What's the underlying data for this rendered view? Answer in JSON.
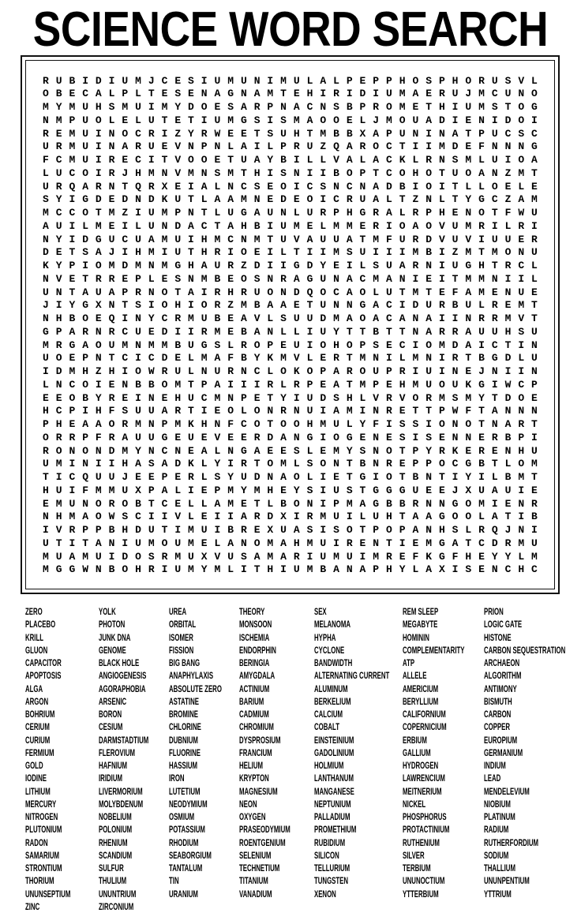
{
  "title": "SCIENCE WORD SEARCH",
  "grid": {
    "rows": [
      "RUBIDIUMJCESIUMUNIMULALPEPPHOSPHORUSVL",
      "OBECALPLTESENAGNAMTEHIRIDIUMAERUJMCUNO",
      "MYMUHSMUIMYDOESARPNACNSBPROMETHIUMSTOG",
      "NMPUOLELUTETIUMGSISMAOOELJMOUADIENIDOI",
      "REMUINOCRIZYRWEETSUHTMBBXAPUNINATPUCSC",
      "URMUINARUEVNPNLAILPRUZQAROCTIIMDEFNNNG",
      "FCMUIRECITVOOETUAYBILLVALACKLRNSMLUIOA",
      "LUCOIRJHMNVMNSMTHISNIIBOPTCOHOTUOANZMT",
      "URQARNTQRXEIALNCSEOICSNCNADBIOITLLOELE",
      "SYIGDEDNDKUTLAAMNEDEOICRUALTZNLTYGCZAM",
      "MCCOTMZIUMPNTLUGAUNLURPHGRALRPHENOTFWU",
      "AUILMEILUNDACTAHBIUMELMMERIOAOVUMRILRI",
      "NYIDGUCUAMUIHMCNMTUVAUUATMFURDVUVIUUER",
      "DETSAJIHMIUTHRIOEILTIIMSUIIIMBIZMTMONU",
      "KYPIOMDMNMGHAURZDIIGDYEILSUARNIUGHTRCL",
      "NVETRREPLESNMBEOSNRAGUNACMANIEITMMNIIL",
      "UNTAUAPRNOTAIRHRUONDQOCAOLUTMTEFAMENUE",
      "JIYGXNTSIOHIORZMBAAETUNNGACIDURBULREMT",
      "NHBOEQINYCRMUBEAVLSUUDMAOACANAIINRRMVT",
      "GPARNRCUEDIIRMEBANLLIUYTTBTTNARRAUUHSU",
      "MRGAOUMNMMBUGSLROPEUIOHOPSECIOMDAICTIN",
      "UOEPNTCICDELMAFBYKMVLERTMNILMNIRTBGDLU",
      "IDMHZHIOWRULNURNCLOKOPAROUPRIUINEJNIIN",
      "LNCOIENBBOMTPAIIIRLRPEATMPEHMUOUKGIWCP",
      "EEOBYREINEHUCMNPETYIUDSHLVRVORMSMYTDOE",
      "HCPIHFSUUARTIEOLONRNUIAMINRETTPWFTANNN",
      "PHEAAORMNPMKHNFCOTOOHMULYFISSIONOTNART",
      "ORRPFRAUUGEUEVEERDANGIOGENESISENNERBPI",
      "RONONDMYNCNEALNGAEESLEMYSNOTPYRKERENHU",
      "UMINIIHASADKLYIRTOMLSONTBNREPPOCGBTLOM",
      "TICQUUJEEPERLSYUDNAOLIETGIOTBNTIYILBMT",
      "HUIFMMUXPALIEPMYMHEYSIUSTGGGUEEJXUAUIE",
      "EMUNOROBTCELLAMETLBONIPMAGBBRNNGOMIENR",
      "NHMAOWSCIIVLEIIARDXIRMUILUHTAAGOOLATIB",
      "IVRPPBHDUTIMUIBREXUASISOTPOPANHSLRQJNI",
      "UTITANIUMOUMELANOMAHMUIRENTIEMGATCDRMU",
      "MUAMUIDOSRMUXVUSAMARIUMUIMREFKGFHEYYLM",
      "MGGWNBOHRIUMYMLITHIUMBANAPHYLAXISENCHC"
    ]
  },
  "word_list": {
    "columns": [
      [
        "ZERO",
        "PLACEBO",
        "KRILL",
        "GLUON",
        "CAPACITOR",
        "APOPTOSIS",
        "ALGA",
        "ARGON",
        "BOHRIUM",
        "CERIUM",
        "CURIUM",
        "FERMIUM",
        "GOLD",
        "IODINE",
        "LITHIUM",
        "MERCURY",
        "NITROGEN",
        "PLUTONIUM",
        "RADON",
        "SAMARIUM",
        "STRONTIUM",
        "THORIUM",
        "UNUNSEPTIUM",
        "ZINC"
      ],
      [
        "YOLK",
        "PHOTON",
        "JUNK DNA",
        "GENOME",
        "BLACK HOLE",
        "ANGIOGENESIS",
        "AGORAPHOBIA",
        "ARSENIC",
        "BORON",
        "CESIUM",
        "DARMSTADTIUM",
        "FLEROVIUM",
        "HAFNIUM",
        "IRIDIUM",
        "LIVERMORIUM",
        "MOLYBDENUM",
        "NOBELIUM",
        "POLONIUM",
        "RHENIUM",
        "SCANDIUM",
        "SULFUR",
        "THULIUM",
        "UNUNTRIUM",
        "ZIRCONIUM"
      ],
      [
        "UREA",
        "ORBITAL",
        "ISOMER",
        "FISSION",
        "BIG BANG",
        "ANAPHYLAXIS",
        "ABSOLUTE ZERO",
        "ASTATINE",
        "BROMINE",
        "CHLORINE",
        "DUBNIUM",
        "FLUORINE",
        "HASSIUM",
        "IRON",
        "LUTETIUM",
        "NEODYMIUM",
        "OSMIUM",
        "POTASSIUM",
        "RHODIUM",
        "SEABORGIUM",
        "TANTALUM",
        "TIN",
        "URANIUM"
      ],
      [
        "THEORY",
        "MONSOON",
        "ISCHEMIA",
        "ENDORPHIN",
        "BERINGIA",
        "AMYGDALA",
        "ACTINIUM",
        "BARIUM",
        "CADMIUM",
        "CHROMIUM",
        "DYSPROSIUM",
        "FRANCIUM",
        "HELIUM",
        "KRYPTON",
        "MAGNESIUM",
        "NEON",
        "OXYGEN",
        "PRASEODYMIUM",
        "ROENTGENIUM",
        "SELENIUM",
        "TECHNETIUM",
        "TITANIUM",
        "VANADIUM"
      ],
      [
        "SEX",
        "MELANOMA",
        "HYPHA",
        "CYCLONE",
        "BANDWIDTH",
        "ALTERNATING CURRENT",
        "ALUMINUM",
        "BERKELIUM",
        "CALCIUM",
        "COBALT",
        "EINSTEINIUM",
        "GADOLINIUM",
        "HOLMIUM",
        "LANTHANUM",
        "MANGANESE",
        "NEPTUNIUM",
        "PALLADIUM",
        "PROMETHIUM",
        "RUBIDIUM",
        "SILICON",
        "TELLURIUM",
        "TUNGSTEN",
        "XENON"
      ],
      [
        "REM SLEEP",
        "MEGABYTE",
        "HOMININ",
        "COMPLEMENTARITY",
        "ATP",
        "ALLELE",
        "AMERICIUM",
        "BERYLLIUM",
        "CALIFORNIUM",
        "COPERNICIUM",
        "ERBIUM",
        "GALLIUM",
        "HYDROGEN",
        "LAWRENCIUM",
        "MEITNERIUM",
        "NICKEL",
        "PHOSPHORUS",
        "PROTACTINIUM",
        "RUTHENIUM",
        "SILVER",
        "TERBIUM",
        "UNUNOCTIUM",
        "YTTERBIUM"
      ],
      [
        "PRION",
        "LOGIC GATE",
        "HISTONE",
        "CARBON SEQUESTRATION",
        "ARCHAEON",
        "ALGORITHM",
        "ANTIMONY",
        "BISMUTH",
        "CARBON",
        "COPPER",
        "EUROPIUM",
        "GERMANIUM",
        "INDIUM",
        "LEAD",
        "MENDELEVIUM",
        "NIOBIUM",
        "PLATINUM",
        "RADIUM",
        "RUTHERFORDIUM",
        "SODIUM",
        "THALLIUM",
        "UNUNPENTIUM",
        "YTTRIUM"
      ]
    ]
  }
}
